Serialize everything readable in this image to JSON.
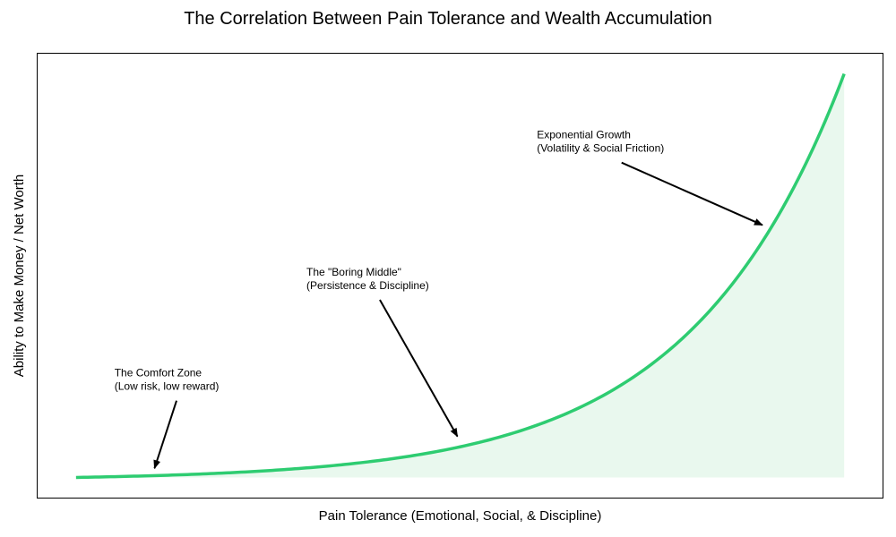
{
  "chart_data": {
    "type": "area",
    "title": "The Correlation Between Pain Tolerance and Wealth Accumulation",
    "xlabel": "Pain Tolerance (Emotional, Social, & Discipline)",
    "ylabel": "Ability to Make Money / Net Worth",
    "xlim": [
      -0.05,
      1.05
    ],
    "ylim": [
      -0.05,
      1.05
    ],
    "grid": false,
    "legend": "none",
    "curve": {
      "formula": "exponential",
      "x_start": 0,
      "x_end": 1,
      "k": 5,
      "color": "#2ecc71",
      "fill": "#e9f8ee"
    },
    "annotations": [
      {
        "name": "comfort-zone",
        "lines": [
          "The Comfort Zone",
          "(Low risk, low reward)"
        ],
        "text_at": [
          0.05,
          0.25
        ],
        "points_to": [
          0.1,
          0.01
        ]
      },
      {
        "name": "boring-middle",
        "lines": [
          "The \"Boring Middle\"",
          "(Persistence & Discipline)"
        ],
        "text_at": [
          0.3,
          0.5
        ],
        "points_to": [
          0.5,
          0.09
        ]
      },
      {
        "name": "exponential-growth",
        "lines": [
          "Exponential Growth",
          "(Volatility & Social Friction)"
        ],
        "text_at": [
          0.6,
          0.84
        ],
        "points_to": [
          0.9,
          0.62
        ]
      }
    ]
  }
}
